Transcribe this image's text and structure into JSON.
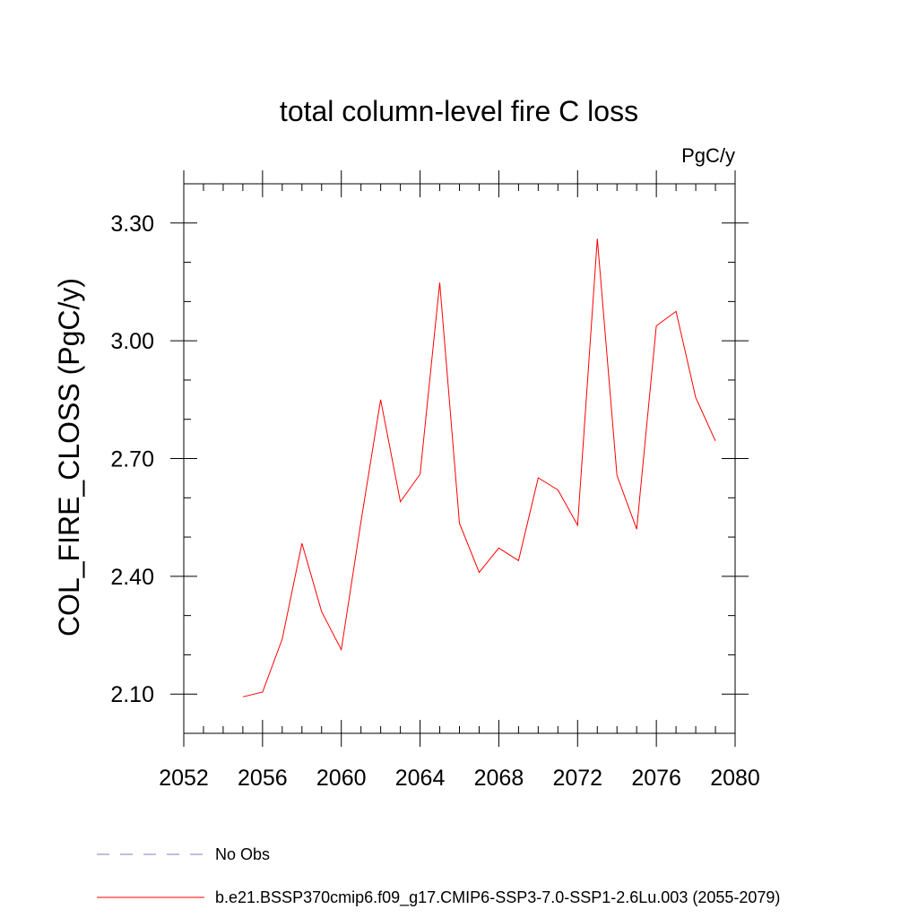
{
  "chart_data": {
    "type": "line",
    "title": "total column-level fire C loss",
    "units": "PgC/y",
    "ylabel": "COL_FIRE_CLOSS  (PgC/y)",
    "xlabel": "",
    "xlim": [
      2052,
      2080
    ],
    "ylim": [
      2.0,
      3.4
    ],
    "x_ticks": [
      "2052",
      "2056",
      "2060",
      "2064",
      "2068",
      "2072",
      "2076",
      "2080"
    ],
    "y_ticks": [
      "2.10",
      "2.40",
      "2.70",
      "3.00",
      "3.30"
    ],
    "series": [
      {
        "name": "b.e21.BSSP370cmip6.f09_g17.CMIP6-SSP3-7.0-SSP1-2.6Lu.003 (2055-2079)",
        "color": "#ff0000",
        "x": [
          2055,
          2056,
          2057,
          2058,
          2059,
          2060,
          2061,
          2062,
          2063,
          2064,
          2065,
          2066,
          2067,
          2068,
          2069,
          2070,
          2071,
          2072,
          2073,
          2074,
          2075,
          2076,
          2077,
          2078,
          2079
        ],
        "y": [
          2.093,
          2.105,
          2.24,
          2.484,
          2.31,
          2.213,
          2.54,
          2.85,
          2.59,
          2.66,
          3.148,
          2.535,
          2.41,
          2.472,
          2.44,
          2.651,
          2.62,
          2.53,
          3.26,
          2.657,
          2.52,
          3.038,
          3.075,
          2.855,
          2.745
        ]
      }
    ],
    "legend": [
      {
        "label": "No Obs",
        "color": "#7f7fbf",
        "style": "dashed"
      },
      {
        "label": "b.e21.BSSP370cmip6.f09_g17.CMIP6-SSP3-7.0-SSP1-2.6Lu.003 (2055-2079)",
        "color": "#ff0000",
        "style": "solid"
      }
    ],
    "legend_position": "bottom"
  }
}
